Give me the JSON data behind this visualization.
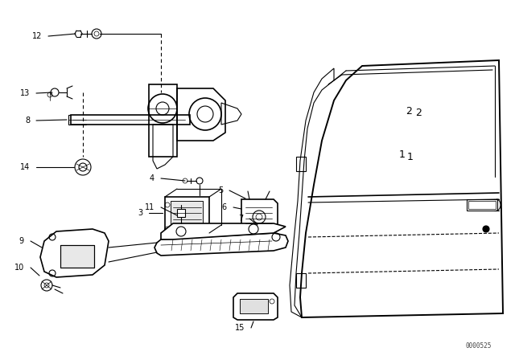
{
  "bg_color": "#ffffff",
  "line_color": "#000000",
  "fig_width": 6.4,
  "fig_height": 4.48,
  "dpi": 100,
  "watermark": "0000525"
}
